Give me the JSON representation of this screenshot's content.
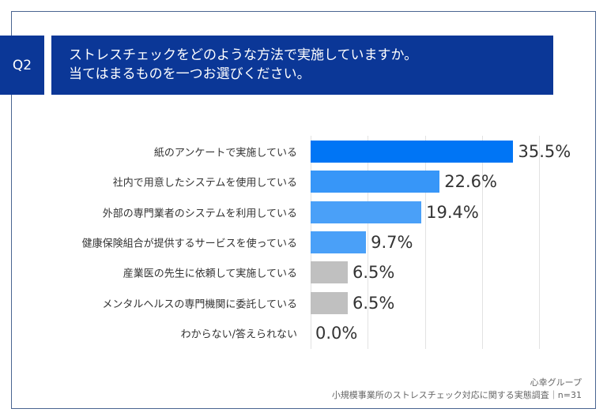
{
  "header": {
    "q_label": "Q2",
    "title_line1": "ストレスチェックをどのような方法で実施していますか。",
    "title_line2": "当てはまるものを一つお選びください。"
  },
  "chart_data": {
    "type": "bar",
    "orientation": "horizontal",
    "categories": [
      "紙のアンケートで実施している",
      "社内で用意したシステムを使用している",
      "外部の専門業者のシステムを利用している",
      "健康保険組合が提供するサービスを使っている",
      "産業医の先生に依頼して実施している",
      "メンタルヘルスの専門機関に委託している",
      "わからない/答えられない"
    ],
    "values": [
      35.5,
      22.6,
      19.4,
      9.7,
      6.5,
      6.5,
      0.0
    ],
    "value_labels": [
      "35.5%",
      "22.6%",
      "19.4%",
      "9.7%",
      "6.5%",
      "6.5%",
      "0.0%"
    ],
    "colors": [
      "#0075f5",
      "#3796f8",
      "#4aa0f8",
      "#4aa0f8",
      "#c0c0c0",
      "#c0c0c0",
      "#c0c0c0"
    ],
    "xlim": [
      0,
      40
    ],
    "grid": true,
    "unit": "%"
  },
  "footer": {
    "source": "心幸グループ",
    "survey": "小規模事業所のストレスチェック対応に関する実態調査｜n=31"
  }
}
